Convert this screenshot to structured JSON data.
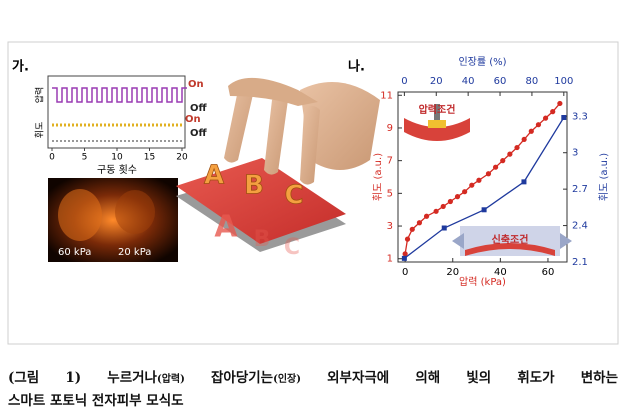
{
  "figure": {
    "panel_a": {
      "label": "가.",
      "chart": {
        "type": "line",
        "y_labels": [
          "압력",
          "휘도"
        ],
        "x_label": "구동 횟수",
        "xlim": [
          0,
          20
        ],
        "xticks": [
          0,
          5,
          10,
          15,
          20
        ],
        "state_labels": [
          "On",
          "Off",
          "On",
          "Off"
        ]
      },
      "image_labels": [
        "60 kPa",
        "20 kPa"
      ],
      "letters": [
        "A",
        "B",
        "C"
      ]
    },
    "panel_b": {
      "label": "나.",
      "chart": {
        "type": "scatter",
        "x_label": "압력 (kPa)",
        "x2_label": "인장률 (%)",
        "y_label": "휘도 (a.u.)",
        "y2_label": "휘도 (a.u.)",
        "xlim": [
          -3,
          68
        ],
        "xticks": [
          0,
          20,
          40,
          60
        ],
        "x2lim": [
          -4,
          102
        ],
        "x2ticks": [
          0,
          20,
          40,
          60,
          80,
          100
        ],
        "ylim": [
          0.8,
          11.2
        ],
        "yticks": [
          1,
          3,
          5,
          7,
          9,
          11
        ],
        "y2lim": [
          2.1,
          3.5
        ],
        "y2ticks": [
          2.1,
          2.4,
          2.7,
          3,
          3.3
        ],
        "series": [
          {
            "color": "#d42a22",
            "x": [
              0,
              1,
              3,
              6,
              9,
              13,
              16,
              19,
              22,
              25,
              28,
              31,
              35,
              38,
              41,
              44,
              47,
              50,
              53,
              56,
              59,
              62,
              65
            ],
            "values": [
              1.3,
              2.2,
              2.8,
              3.2,
              3.6,
              3.9,
              4.2,
              4.5,
              4.8,
              5.1,
              5.5,
              5.8,
              6.2,
              6.6,
              7.0,
              7.4,
              7.8,
              8.3,
              8.8,
              9.2,
              9.6,
              10.0,
              10.5
            ]
          },
          {
            "color": "#1f3a9e",
            "axis": "y2",
            "x": [
              0,
              25,
              50,
              75,
              100
            ],
            "values": [
              2.13,
              2.38,
              2.53,
              2.76,
              3.29
            ]
          }
        ],
        "insets": [
          "압력조건",
          "신축조건"
        ]
      }
    }
  },
  "caption": {
    "line1": [
      "(그림 1) 누르거나",
      "(압력)",
      " 잡아당기는",
      "(인장)",
      " 외부자극에 의해 빛의 휘도가 변하는"
    ],
    "line2": "스마트 포토닉 전자피부 모식도"
  }
}
